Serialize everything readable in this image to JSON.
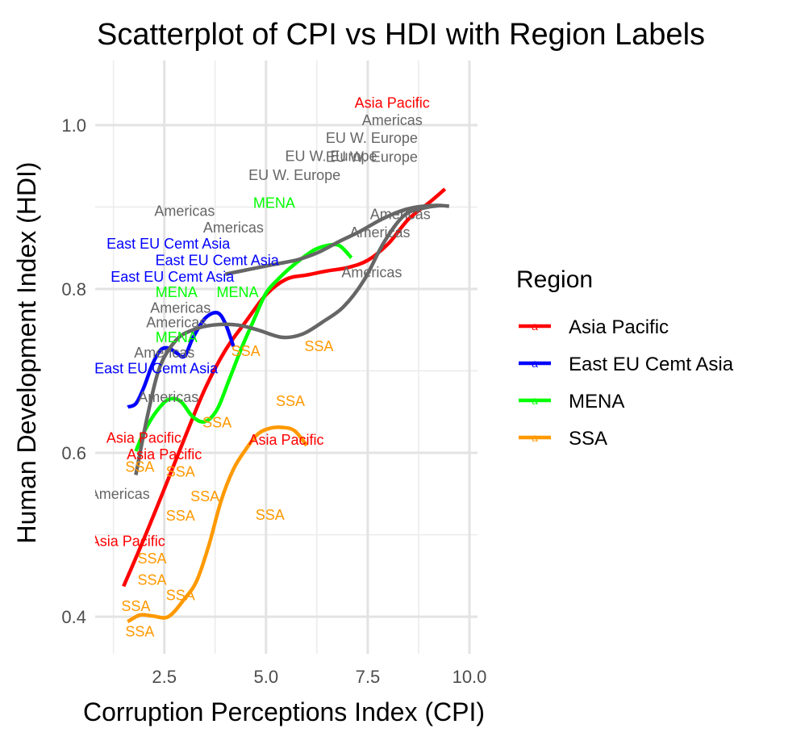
{
  "chart_data": {
    "type": "scatter",
    "title": "Scatterplot of CPI vs HDI with Region Labels",
    "xlabel": "Corruption Perceptions Index (CPI)",
    "ylabel": "Human Development Index (HDI)",
    "xlim": [
      1.0,
      10.5
    ],
    "ylim": [
      0.355,
      1.075
    ],
    "x_ticks": [
      2.5,
      5.0,
      7.5,
      10.0
    ],
    "x_tick_labels": [
      "2.5",
      "5.0",
      "7.5",
      "10.0"
    ],
    "y_ticks": [
      0.4,
      0.6,
      0.8,
      1.0
    ],
    "y_tick_labels": [
      "0.4",
      "0.6",
      "0.8",
      "1.0"
    ],
    "grid": true,
    "legend": {
      "title": "Region",
      "placement": "right",
      "key_glyph": "a",
      "entries": [
        "Asia Pacific",
        "East EU Cemt Asia",
        "MENA",
        "SSA"
      ]
    },
    "colors": {
      "Asia Pacific": "#ff0000",
      "East EU Cemt Asia": "#0000ff",
      "MENA": "#00ff00",
      "SSA": "#ff9900",
      "Americas": "#666666",
      "EU W. Europe": "#666666",
      "overall": "#666666"
    },
    "points": [
      {
        "label": "Asia Pacific",
        "x": 8.1,
        "y": 1.027
      },
      {
        "label": "Americas",
        "x": 8.1,
        "y": 1.006
      },
      {
        "label": "EU W. Europe",
        "x": 6.6,
        "y": 0.962
      },
      {
        "label": "EU W. Europe",
        "x": 7.6,
        "y": 0.984
      },
      {
        "label": "EU W. Europe",
        "x": 7.6,
        "y": 0.961
      },
      {
        "label": "EU W. Europe",
        "x": 5.7,
        "y": 0.939
      },
      {
        "label": "MENA",
        "x": 5.2,
        "y": 0.905
      },
      {
        "label": "Americas",
        "x": 3.0,
        "y": 0.895
      },
      {
        "label": "Americas",
        "x": 8.3,
        "y": 0.891
      },
      {
        "label": "Americas",
        "x": 4.2,
        "y": 0.875
      },
      {
        "label": "Americas",
        "x": 7.8,
        "y": 0.869
      },
      {
        "label": "East EU Cemt Asia",
        "x": 2.6,
        "y": 0.855
      },
      {
        "label": "East EU Cemt Asia",
        "x": 3.8,
        "y": 0.835
      },
      {
        "label": "Americas",
        "x": 7.6,
        "y": 0.82
      },
      {
        "label": "East EU Cemt Asia",
        "x": 2.7,
        "y": 0.815
      },
      {
        "label": "MENA",
        "x": 2.8,
        "y": 0.796
      },
      {
        "label": "MENA",
        "x": 4.3,
        "y": 0.796
      },
      {
        "label": "Americas",
        "x": 2.9,
        "y": 0.777
      },
      {
        "label": "Americas",
        "x": 2.8,
        "y": 0.759
      },
      {
        "label": "MENA",
        "x": 2.8,
        "y": 0.741
      },
      {
        "label": "Americas",
        "x": 2.5,
        "y": 0.722
      },
      {
        "label": "SSA",
        "x": 4.5,
        "y": 0.724
      },
      {
        "label": "SSA",
        "x": 6.3,
        "y": 0.73
      },
      {
        "label": "East EU Cemt Asia",
        "x": 2.3,
        "y": 0.703
      },
      {
        "label": "Americas",
        "x": 2.6,
        "y": 0.668
      },
      {
        "label": "SSA",
        "x": 5.6,
        "y": 0.663
      },
      {
        "label": "SSA",
        "x": 3.8,
        "y": 0.637
      },
      {
        "label": "Asia Pacific",
        "x": 2.0,
        "y": 0.618
      },
      {
        "label": "Asia Pacific",
        "x": 5.5,
        "y": 0.616
      },
      {
        "label": "Asia Pacific",
        "x": 2.5,
        "y": 0.598
      },
      {
        "label": "SSA",
        "x": 1.9,
        "y": 0.583
      },
      {
        "label": "SSA",
        "x": 2.9,
        "y": 0.577
      },
      {
        "label": "Americas",
        "x": 1.4,
        "y": 0.55
      },
      {
        "label": "SSA",
        "x": 3.5,
        "y": 0.547
      },
      {
        "label": "SSA",
        "x": 2.9,
        "y": 0.523
      },
      {
        "label": "SSA",
        "x": 5.1,
        "y": 0.524
      },
      {
        "label": "Asia Pacific",
        "x": 1.6,
        "y": 0.492
      },
      {
        "label": "SSA",
        "x": 2.2,
        "y": 0.471
      },
      {
        "label": "SSA",
        "x": 2.2,
        "y": 0.445
      },
      {
        "label": "SSA",
        "x": 2.9,
        "y": 0.426
      },
      {
        "label": "SSA",
        "x": 1.8,
        "y": 0.413
      },
      {
        "label": "SSA",
        "x": 1.9,
        "y": 0.382
      }
    ],
    "smooth_lines": [
      {
        "group": "Asia Pacific",
        "points": [
          [
            1.5,
            0.437
          ],
          [
            2.0,
            0.495
          ],
          [
            2.5,
            0.556
          ],
          [
            3.0,
            0.618
          ],
          [
            3.5,
            0.678
          ],
          [
            4.0,
            0.725
          ],
          [
            4.5,
            0.76
          ],
          [
            5.0,
            0.793
          ],
          [
            5.5,
            0.812
          ],
          [
            6.0,
            0.817
          ],
          [
            6.5,
            0.822
          ],
          [
            7.0,
            0.826
          ],
          [
            7.5,
            0.835
          ],
          [
            8.0,
            0.855
          ],
          [
            8.5,
            0.885
          ],
          [
            9.0,
            0.905
          ],
          [
            9.4,
            0.922
          ]
        ]
      },
      {
        "group": "East EU Cemt Asia",
        "points": [
          [
            1.6,
            0.656
          ],
          [
            1.8,
            0.66
          ],
          [
            2.0,
            0.68
          ],
          [
            2.2,
            0.707
          ],
          [
            2.4,
            0.725
          ],
          [
            2.6,
            0.728
          ],
          [
            2.8,
            0.722
          ],
          [
            3.0,
            0.718
          ],
          [
            3.2,
            0.74
          ],
          [
            3.5,
            0.764
          ],
          [
            3.8,
            0.771
          ],
          [
            4.0,
            0.758
          ],
          [
            4.2,
            0.73
          ]
        ]
      },
      {
        "group": "MENA",
        "points": [
          [
            1.8,
            0.602
          ],
          [
            2.0,
            0.625
          ],
          [
            2.3,
            0.65
          ],
          [
            2.6,
            0.665
          ],
          [
            2.9,
            0.663
          ],
          [
            3.2,
            0.644
          ],
          [
            3.5,
            0.638
          ],
          [
            3.8,
            0.653
          ],
          [
            4.1,
            0.69
          ],
          [
            4.4,
            0.728
          ],
          [
            4.7,
            0.762
          ],
          [
            5.0,
            0.795
          ],
          [
            5.3,
            0.812
          ],
          [
            5.6,
            0.826
          ],
          [
            5.9,
            0.838
          ],
          [
            6.2,
            0.848
          ],
          [
            6.5,
            0.853
          ],
          [
            6.8,
            0.853
          ],
          [
            7.1,
            0.838
          ]
        ]
      },
      {
        "group": "SSA",
        "points": [
          [
            1.6,
            0.394
          ],
          [
            1.9,
            0.402
          ],
          [
            2.2,
            0.401
          ],
          [
            2.6,
            0.4
          ],
          [
            3.0,
            0.422
          ],
          [
            3.3,
            0.444
          ],
          [
            3.6,
            0.488
          ],
          [
            3.9,
            0.542
          ],
          [
            4.2,
            0.58
          ],
          [
            4.5,
            0.604
          ],
          [
            4.8,
            0.623
          ],
          [
            5.1,
            0.63
          ],
          [
            5.4,
            0.631
          ],
          [
            5.7,
            0.627
          ],
          [
            6.0,
            0.609
          ]
        ]
      },
      {
        "group": "overall",
        "points": [
          [
            1.8,
            0.573
          ],
          [
            2.1,
            0.648
          ],
          [
            2.4,
            0.706
          ],
          [
            2.8,
            0.738
          ],
          [
            3.2,
            0.75
          ],
          [
            3.7,
            0.756
          ],
          [
            4.3,
            0.756
          ],
          [
            4.8,
            0.75
          ],
          [
            5.4,
            0.741
          ],
          [
            5.9,
            0.745
          ],
          [
            6.4,
            0.76
          ],
          [
            6.9,
            0.778
          ],
          [
            7.4,
            0.81
          ],
          [
            7.9,
            0.857
          ],
          [
            8.4,
            0.89
          ],
          [
            8.9,
            0.899
          ],
          [
            9.3,
            0.902
          ]
        ]
      },
      {
        "group": "Americas",
        "points": [
          [
            4.0,
            0.818
          ],
          [
            4.6,
            0.824
          ],
          [
            5.2,
            0.83
          ],
          [
            5.8,
            0.836
          ],
          [
            6.3,
            0.845
          ],
          [
            6.8,
            0.858
          ],
          [
            7.3,
            0.87
          ],
          [
            7.8,
            0.884
          ],
          [
            8.3,
            0.895
          ],
          [
            8.7,
            0.9
          ],
          [
            9.2,
            0.902
          ],
          [
            9.5,
            0.901
          ]
        ]
      }
    ]
  }
}
